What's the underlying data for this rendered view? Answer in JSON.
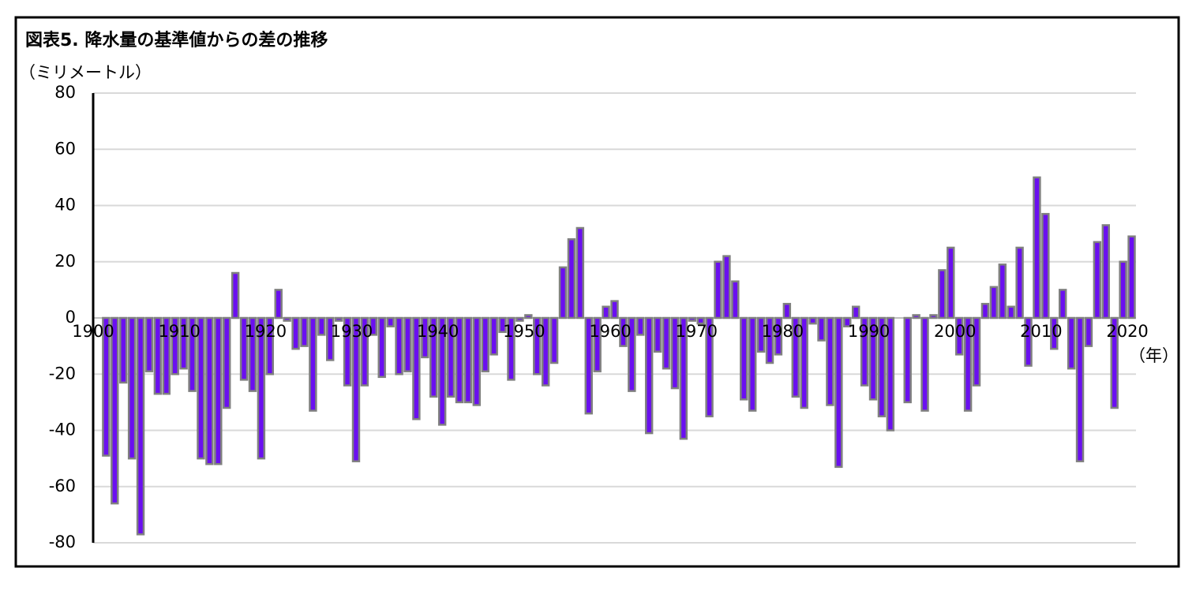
{
  "chart_data": {
    "type": "bar",
    "title": "図表5.  降水量の基準値からの差の推移",
    "y_label": "（ミリメートル）",
    "x_label": "（年）",
    "color": "#6a0ff0",
    "edge_color": "#808080",
    "grid": true,
    "x": [
      1901,
      1902,
      1903,
      1904,
      1905,
      1906,
      1907,
      1908,
      1909,
      1910,
      1911,
      1912,
      1913,
      1914,
      1915,
      1916,
      1917,
      1918,
      1919,
      1920,
      1921,
      1922,
      1923,
      1924,
      1925,
      1926,
      1927,
      1928,
      1929,
      1930,
      1931,
      1932,
      1933,
      1934,
      1935,
      1936,
      1937,
      1938,
      1939,
      1940,
      1941,
      1942,
      1943,
      1944,
      1945,
      1946,
      1947,
      1948,
      1949,
      1950,
      1951,
      1952,
      1953,
      1954,
      1955,
      1956,
      1957,
      1958,
      1959,
      1960,
      1961,
      1962,
      1963,
      1964,
      1965,
      1966,
      1967,
      1968,
      1969,
      1970,
      1971,
      1972,
      1973,
      1974,
      1975,
      1976,
      1977,
      1978,
      1979,
      1980,
      1981,
      1982,
      1983,
      1984,
      1985,
      1986,
      1987,
      1988,
      1989,
      1990,
      1991,
      1992,
      1993,
      1994,
      1995,
      1996,
      1997,
      1998,
      1999,
      2000,
      2001,
      2002,
      2003,
      2004,
      2005,
      2006,
      2007,
      2008,
      2009,
      2010,
      2011,
      2012,
      2013,
      2014,
      2015,
      2016,
      2017,
      2018,
      2019,
      2020
    ],
    "values": [
      -49,
      -66,
      -23,
      -50,
      -77,
      -19,
      -27,
      -27,
      -20,
      -18,
      -26,
      -50,
      -52,
      -52,
      -32,
      16,
      -22,
      -26,
      -50,
      -20,
      10,
      -1,
      -11,
      -10,
      -33,
      -6,
      -15,
      -1,
      -24,
      -51,
      -24,
      -6,
      -21,
      -3,
      -20,
      -19,
      -36,
      -14,
      -28,
      -38,
      -28,
      -30,
      -30,
      -31,
      -19,
      -13,
      -5,
      -22,
      -1,
      1,
      -20,
      -24,
      -16,
      18,
      28,
      32,
      -34,
      -19,
      4,
      6,
      -10,
      -26,
      -6,
      -41,
      -12,
      -18,
      -25,
      -43,
      -1,
      -2,
      -35,
      20,
      22,
      13,
      -29,
      -33,
      -12,
      -16,
      -13,
      5,
      -28,
      -32,
      -2,
      -8,
      -31,
      -53,
      -3,
      4,
      -24,
      -29,
      -35,
      -40,
      0,
      -30,
      1,
      -33,
      1,
      17,
      25,
      -13,
      -33,
      -24,
      5,
      11,
      19,
      4,
      25,
      -17,
      50,
      37,
      -11,
      10,
      -18,
      -51,
      -10,
      27,
      33,
      -32,
      20,
      29
    ],
    "xlim": [
      1900,
      2021
    ],
    "xticks": [
      1900,
      1910,
      1920,
      1930,
      1940,
      1950,
      1960,
      1970,
      1980,
      1990,
      2000,
      2010,
      2020
    ],
    "ylim": [
      -80,
      80
    ],
    "yticks": [
      -80,
      -60,
      -40,
      -20,
      0,
      20,
      40,
      60,
      80
    ]
  }
}
